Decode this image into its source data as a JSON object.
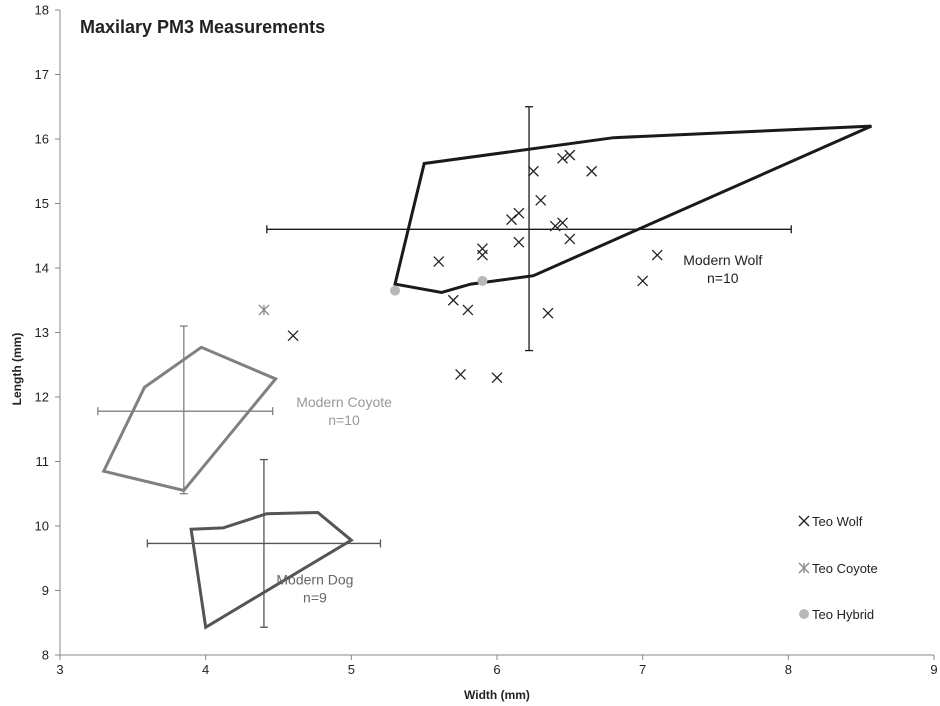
{
  "chart_data": {
    "type": "scatter",
    "title": "Maxilary PM3 Measurements",
    "xlabel": "Width (mm)",
    "ylabel": "Length (mm)",
    "xlim": [
      3,
      9
    ],
    "ylim": [
      8,
      18
    ],
    "x_ticks": [
      "3",
      "4",
      "5",
      "6",
      "7",
      "8",
      "9"
    ],
    "y_ticks": [
      "8",
      "9",
      "10",
      "11",
      "12",
      "13",
      "14",
      "15",
      "16",
      "17",
      "18"
    ],
    "grid": false,
    "legend_position": "right",
    "series": [
      {
        "name": "Teo Wolf",
        "marker": "x",
        "color": "#222222",
        "points": [
          [
            4.6,
            12.95
          ],
          [
            5.6,
            14.1
          ],
          [
            5.7,
            13.5
          ],
          [
            5.75,
            12.35
          ],
          [
            5.8,
            13.35
          ],
          [
            5.9,
            14.3
          ],
          [
            5.9,
            14.2
          ],
          [
            6.0,
            12.3
          ],
          [
            6.1,
            14.75
          ],
          [
            6.15,
            14.85
          ],
          [
            6.15,
            14.4
          ],
          [
            6.25,
            15.5
          ],
          [
            6.3,
            15.05
          ],
          [
            6.35,
            13.3
          ],
          [
            6.4,
            14.65
          ],
          [
            6.45,
            14.7
          ],
          [
            6.45,
            15.7
          ],
          [
            6.5,
            15.75
          ],
          [
            6.5,
            14.45
          ],
          [
            6.65,
            15.5
          ],
          [
            7.0,
            13.8
          ],
          [
            7.1,
            14.2
          ]
        ]
      },
      {
        "name": "Teo Coyote",
        "marker": "star",
        "color": "#888888",
        "points": [
          [
            4.4,
            13.35
          ]
        ]
      },
      {
        "name": "Teo Hybrid",
        "marker": "circle",
        "color": "#b8b8b8",
        "points": [
          [
            5.3,
            13.65
          ],
          [
            5.9,
            13.8
          ]
        ]
      }
    ],
    "groups": [
      {
        "label_name": "Modern Wolf",
        "label_n": "n=10",
        "label_at": [
          7.55,
          13.95
        ],
        "color": "#1a1a1a",
        "polygon": [
          [
            5.3,
            13.75
          ],
          [
            5.5,
            15.62
          ],
          [
            6.8,
            16.02
          ],
          [
            8.57,
            16.2
          ],
          [
            6.25,
            13.88
          ],
          [
            5.82,
            13.75
          ],
          [
            5.62,
            13.62
          ]
        ],
        "mean": [
          6.22,
          14.6
        ],
        "x_range": [
          4.42,
          8.02
        ],
        "y_range": [
          12.72,
          16.5
        ]
      },
      {
        "label_name": "Modern Coyote",
        "label_n": "n=10",
        "label_at": [
          4.95,
          11.75
        ],
        "color": "#808080",
        "polygon": [
          [
            3.3,
            10.85
          ],
          [
            3.85,
            10.55
          ],
          [
            4.48,
            12.28
          ],
          [
            3.97,
            12.77
          ],
          [
            3.58,
            12.15
          ]
        ],
        "mean": [
          3.85,
          11.78
        ],
        "x_range": [
          3.26,
          4.46
        ],
        "y_range": [
          10.5,
          13.1
        ]
      },
      {
        "label_name": "Modern Dog",
        "label_n": "n=9",
        "label_at": [
          4.75,
          9.0
        ],
        "color": "#555555",
        "polygon": [
          [
            3.9,
            9.95
          ],
          [
            4.12,
            9.97
          ],
          [
            4.42,
            10.19
          ],
          [
            4.77,
            10.21
          ],
          [
            5.0,
            9.78
          ],
          [
            4.0,
            8.43
          ]
        ],
        "mean": [
          4.4,
          9.73
        ],
        "x_range": [
          3.6,
          5.2
        ],
        "y_range": [
          8.43,
          11.03
        ]
      }
    ]
  }
}
